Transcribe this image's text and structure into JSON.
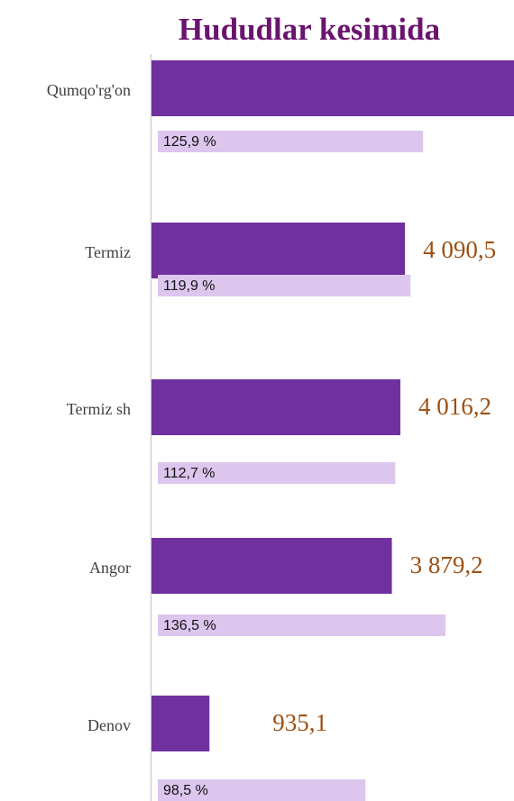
{
  "chart_data": {
    "type": "bar",
    "orientation": "horizontal",
    "title": "Hududlar kesimida",
    "categories": [
      "Qumqo'rg'on",
      "Termiz",
      "Termiz sh",
      "Angor",
      "Denov"
    ],
    "series": [
      {
        "color": "#7030a0",
        "values": [
          5850,
          4090.5,
          4016.2,
          3879.2,
          935.1
        ],
        "value_labels": [
          null,
          "4 090,5",
          "4 016,2",
          "3 879,2",
          "935,1"
        ]
      },
      {
        "color": "#dcc6ee",
        "values": [
          125.9,
          119.9,
          112.7,
          136.5,
          98.5
        ],
        "value_labels": [
          "125,9 %",
          "119,9 %",
          "112,7 %",
          "136,5 %",
          "98,5 %"
        ]
      }
    ]
  }
}
